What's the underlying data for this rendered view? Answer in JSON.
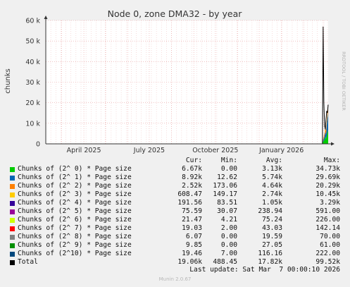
{
  "chart_data": {
    "type": "area",
    "title": "Node 0, zone DMA32 - by year",
    "ylabel": "chunks",
    "ylim": [
      0,
      60000
    ],
    "yticks": [
      "0",
      "10 k",
      "20 k",
      "30 k",
      "40 k",
      "50 k",
      "60 k"
    ],
    "x_tick_labels": [
      "April 2025",
      "July 2025",
      "October 2025",
      "January 2026"
    ],
    "x_range": [
      "2025-02-07",
      "2026-03-07"
    ],
    "grid": true,
    "x": [
      "2026-02-27",
      "2026-02-28",
      "2026-03-01",
      "2026-03-02",
      "2026-03-03",
      "2026-03-04",
      "2026-03-05",
      "2026-03-06",
      "2026-03-07"
    ],
    "series": [
      {
        "name": "Chunks of (2^ 0) * Page size",
        "color": "#00cc00",
        "values": [
          0,
          1000,
          1500,
          2000,
          3500,
          2500,
          4000,
          5500,
          6670
        ]
      },
      {
        "name": "Chunks of (2^ 1) * Page size",
        "color": "#0066b3",
        "values": [
          0,
          600,
          1200,
          1600,
          2500,
          2000,
          5000,
          7000,
          8920
        ]
      },
      {
        "name": "Chunks of (2^ 2) * Page size",
        "color": "#ff8000",
        "values": [
          0,
          500,
          800,
          1200,
          2000,
          1500,
          1800,
          2200,
          2520
        ]
      },
      {
        "name": "Chunks of (2^ 3) * Page size",
        "color": "#ffcc00",
        "values": [
          0,
          200,
          300,
          400,
          600,
          500,
          550,
          600,
          608
        ]
      },
      {
        "name": "Chunks of (2^ 4) * Page size",
        "color": "#330099",
        "values": [
          0,
          80,
          100,
          120,
          150,
          140,
          170,
          185,
          192
        ]
      },
      {
        "name": "Chunks of (2^ 5) * Page size",
        "color": "#990099",
        "values": [
          0,
          30,
          40,
          50,
          60,
          55,
          70,
          74,
          76
        ]
      },
      {
        "name": "Chunks of (2^ 6) * Page size",
        "color": "#ccff00",
        "values": [
          0,
          10,
          12,
          15,
          18,
          17,
          20,
          21,
          21
        ]
      },
      {
        "name": "Chunks of (2^ 7) * Page size",
        "color": "#ff0000",
        "values": [
          0,
          8,
          10,
          12,
          15,
          14,
          17,
          18,
          19
        ]
      },
      {
        "name": "Chunks of (2^ 8) * Page size",
        "color": "#808080",
        "values": [
          0,
          3,
          4,
          5,
          5,
          5,
          6,
          6,
          6
        ]
      },
      {
        "name": "Chunks of (2^ 9) * Page size",
        "color": "#008f00",
        "values": [
          0,
          4,
          5,
          6,
          8,
          7,
          9,
          10,
          10
        ]
      },
      {
        "name": "Chunks of (2^10) * Page size",
        "color": "#00487d",
        "values": [
          0,
          10,
          12,
          14,
          16,
          15,
          18,
          19,
          19
        ]
      }
    ],
    "total": {
      "name": "Total",
      "color": "#000000",
      "values": [
        0,
        57000,
        20000,
        9000,
        7000,
        12000,
        16000,
        15000,
        19060
      ]
    }
  },
  "legend": {
    "headers": {
      "cur": "Cur:",
      "min": "Min:",
      "avg": "Avg:",
      "max": "Max:"
    },
    "rows": [
      {
        "label": "Chunks of (2^ 0) * Page size",
        "color": "#00cc00",
        "cur": "6.67k",
        "min": "0.00",
        "avg": "3.13k",
        "max": "34.73k"
      },
      {
        "label": "Chunks of (2^ 1) * Page size",
        "color": "#0066b3",
        "cur": "8.92k",
        "min": "12.62",
        "avg": "5.74k",
        "max": "29.69k"
      },
      {
        "label": "Chunks of (2^ 2) * Page size",
        "color": "#ff8000",
        "cur": "2.52k",
        "min": "173.06",
        "avg": "4.64k",
        "max": "20.29k"
      },
      {
        "label": "Chunks of (2^ 3) * Page size",
        "color": "#ffcc00",
        "cur": "608.47",
        "min": "149.17",
        "avg": "2.74k",
        "max": "10.45k"
      },
      {
        "label": "Chunks of (2^ 4) * Page size",
        "color": "#330099",
        "cur": "191.56",
        "min": "83.51",
        "avg": "1.05k",
        "max": "3.29k"
      },
      {
        "label": "Chunks of (2^ 5) * Page size",
        "color": "#990099",
        "cur": "75.59",
        "min": "30.07",
        "avg": "238.94",
        "max": "591.00"
      },
      {
        "label": "Chunks of (2^ 6) * Page size",
        "color": "#ccff00",
        "cur": "21.47",
        "min": "4.21",
        "avg": "75.24",
        "max": "226.00"
      },
      {
        "label": "Chunks of (2^ 7) * Page size",
        "color": "#ff0000",
        "cur": "19.03",
        "min": "2.00",
        "avg": "43.03",
        "max": "142.14"
      },
      {
        "label": "Chunks of (2^ 8) * Page size",
        "color": "#808080",
        "cur": "6.07",
        "min": "0.00",
        "avg": "19.59",
        "max": "70.00"
      },
      {
        "label": "Chunks of (2^ 9) * Page size",
        "color": "#008f00",
        "cur": "9.85",
        "min": "0.00",
        "avg": "27.05",
        "max": "61.00"
      },
      {
        "label": "Chunks of (2^10) * Page size",
        "color": "#00487d",
        "cur": "19.46",
        "min": "7.00",
        "avg": "116.16",
        "max": "222.00"
      },
      {
        "label": "Total",
        "color": "#000000",
        "cur": "19.06k",
        "min": "488.45",
        "avg": "17.82k",
        "max": "99.52k"
      }
    ]
  },
  "footer": {
    "last_update": "Last update: Sat Mar  7 00:00:10 2026"
  },
  "watermark": "RRDTOOL / TOBI OETIKER",
  "version": "Munin 2.0.67"
}
